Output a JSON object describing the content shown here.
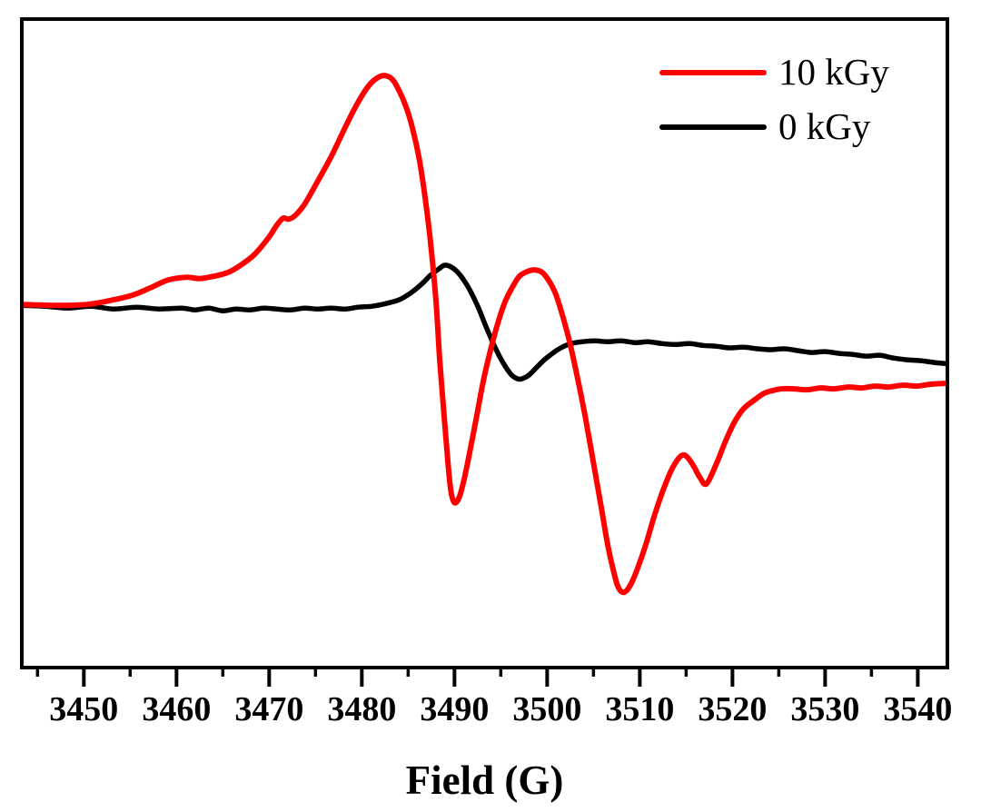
{
  "legend": {
    "items": [
      {
        "label": "10 kGy",
        "color": "#ff0000"
      },
      {
        "label": "0 kGy",
        "color": "#000000"
      }
    ]
  },
  "axis_colors": {
    "frame": "#000000",
    "tick": "#000000",
    "label": "#000000"
  },
  "chart_data": {
    "type": "line",
    "title": "",
    "xlabel": "Field (G)",
    "ylabel": "",
    "xlim": [
      3443.5,
      3543
    ],
    "ylim": [
      -1.58,
      1.24
    ],
    "x_major_ticks": [
      3450,
      3460,
      3470,
      3480,
      3490,
      3500,
      3510,
      3520,
      3530,
      3540
    ],
    "x_minor_tick_step": 5,
    "grid": false,
    "legend_position": "top-right",
    "series": [
      {
        "name": "10 kGy",
        "color": "#ff0000",
        "line_width": 6,
        "x": [
          3443.5,
          3447,
          3450.3,
          3452.7,
          3455.2,
          3457.1,
          3459.1,
          3461.1,
          3462.5,
          3464,
          3465.5,
          3466.9,
          3468.4,
          3469.9,
          3470.8,
          3471.5,
          3472.1,
          3472.8,
          3473.8,
          3475.2,
          3476.7,
          3478.2,
          3479.6,
          3480.9,
          3481.9,
          3482.6,
          3483.3,
          3484,
          3484.8,
          3485.5,
          3486.2,
          3486.8,
          3487.4,
          3488,
          3488.4,
          3488.9,
          3489.3,
          3489.6,
          3489.9,
          3490.2,
          3490.6,
          3491.1,
          3491.7,
          3492.4,
          3493.1,
          3493.9,
          3494.7,
          3495.5,
          3496.3,
          3497,
          3497.8,
          3498.7,
          3499.5,
          3500.2,
          3500.9,
          3501.6,
          3502.4,
          3503.2,
          3504.1,
          3505,
          3505.8,
          3506.5,
          3507.1,
          3507.6,
          3508.1,
          3508.6,
          3509.2,
          3509.9,
          3510.7,
          3511.5,
          3512.4,
          3513.3,
          3514,
          3514.6,
          3515.1,
          3515.8,
          3516.5,
          3517.2,
          3518.3,
          3519.2,
          3520.2,
          3521.2,
          3522.4,
          3523.4,
          3524.3,
          3525.3,
          3526.6,
          3528.1,
          3529.5,
          3531,
          3532.5,
          3534,
          3535.4,
          3536.9,
          3538.4,
          3539.9,
          3541.3,
          3542.9
        ],
        "y": [
          0,
          -0.004,
          0,
          0.016,
          0.04,
          0.071,
          0.107,
          0.119,
          0.113,
          0.123,
          0.139,
          0.171,
          0.218,
          0.29,
          0.345,
          0.377,
          0.373,
          0.389,
          0.437,
          0.536,
          0.647,
          0.774,
          0.885,
          0.964,
          0.996,
          1,
          0.984,
          0.937,
          0.861,
          0.766,
          0.635,
          0.476,
          0.278,
          0.02,
          -0.238,
          -0.496,
          -0.694,
          -0.813,
          -0.861,
          -0.865,
          -0.833,
          -0.754,
          -0.635,
          -0.488,
          -0.337,
          -0.198,
          -0.079,
          0.016,
          0.079,
          0.123,
          0.143,
          0.151,
          0.139,
          0.103,
          0.048,
          -0.04,
          -0.159,
          -0.306,
          -0.488,
          -0.694,
          -0.877,
          -1.044,
          -1.155,
          -1.23,
          -1.258,
          -1.25,
          -1.21,
          -1.139,
          -1.044,
          -0.933,
          -0.825,
          -0.734,
          -0.683,
          -0.659,
          -0.667,
          -0.706,
          -0.758,
          -0.784,
          -0.694,
          -0.603,
          -0.516,
          -0.456,
          -0.417,
          -0.389,
          -0.377,
          -0.369,
          -0.369,
          -0.373,
          -0.365,
          -0.369,
          -0.361,
          -0.365,
          -0.357,
          -0.361,
          -0.353,
          -0.357,
          -0.349,
          -0.345
        ]
      },
      {
        "name": "0 kGy",
        "color": "#000000",
        "line_width": 5.5,
        "x": [
          3443.5,
          3445.9,
          3448.3,
          3450.8,
          3453.2,
          3455.7,
          3458.1,
          3460.6,
          3462,
          3463.5,
          3465,
          3466.4,
          3467.9,
          3469.4,
          3470.8,
          3472.3,
          3473.8,
          3475.2,
          3476.7,
          3478.2,
          3479.6,
          3481.1,
          3482.6,
          3484,
          3485.2,
          3486.4,
          3487.4,
          3488.3,
          3488.9,
          3489.5,
          3490.2,
          3491,
          3491.8,
          3492.6,
          3493.3,
          3494.1,
          3494.9,
          3495.6,
          3496.2,
          3496.8,
          3497.3,
          3498,
          3498.8,
          3499.7,
          3500.7,
          3501.6,
          3502.6,
          3503.8,
          3505.1,
          3506.5,
          3508,
          3509.5,
          3510.9,
          3512.4,
          3513.9,
          3515.4,
          3516.8,
          3518.3,
          3519.7,
          3521.2,
          3522.7,
          3524.1,
          3525.6,
          3527.1,
          3528.5,
          3530,
          3531.5,
          3532.9,
          3534.4,
          3535.9,
          3537.3,
          3538.8,
          3540.3,
          3541.8,
          3542.9
        ],
        "y": [
          -0.004,
          -0.008,
          -0.016,
          -0.008,
          -0.02,
          -0.012,
          -0.02,
          -0.016,
          -0.024,
          -0.016,
          -0.028,
          -0.02,
          -0.024,
          -0.016,
          -0.02,
          -0.024,
          -0.016,
          -0.02,
          -0.016,
          -0.02,
          -0.012,
          -0.008,
          0.004,
          0.02,
          0.048,
          0.087,
          0.127,
          0.155,
          0.171,
          0.167,
          0.147,
          0.107,
          0.052,
          -0.016,
          -0.087,
          -0.163,
          -0.23,
          -0.278,
          -0.31,
          -0.325,
          -0.325,
          -0.31,
          -0.278,
          -0.242,
          -0.21,
          -0.187,
          -0.171,
          -0.163,
          -0.159,
          -0.163,
          -0.159,
          -0.167,
          -0.163,
          -0.171,
          -0.175,
          -0.171,
          -0.179,
          -0.183,
          -0.19,
          -0.187,
          -0.194,
          -0.198,
          -0.194,
          -0.202,
          -0.21,
          -0.206,
          -0.214,
          -0.218,
          -0.226,
          -0.222,
          -0.234,
          -0.242,
          -0.246,
          -0.254,
          -0.258
        ]
      }
    ]
  }
}
